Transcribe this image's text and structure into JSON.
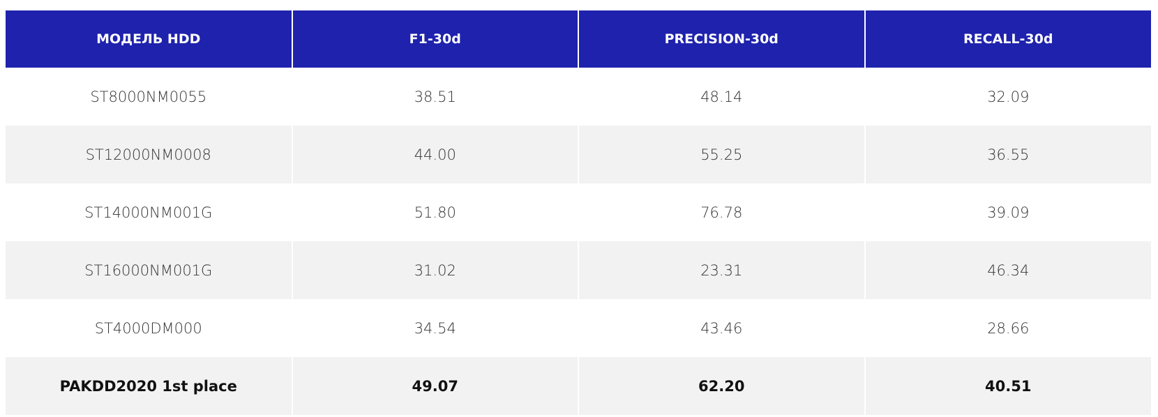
{
  "table": {
    "header": [
      "МОДЕЛЬ HDD",
      "F1-30d",
      "PRECISION-30d",
      "RECALL-30d"
    ],
    "rows": [
      [
        "ST8000NM0055",
        "38.51",
        "48.14",
        "32.09"
      ],
      [
        "ST12000NM0008",
        "44.00",
        "55.25",
        "36.55"
      ],
      [
        "ST14000NM001G",
        "51.80",
        "76.78",
        "39.09"
      ],
      [
        "ST16000NM001G",
        "31.02",
        "23.31",
        "46.34"
      ],
      [
        "ST4000DM000",
        "34.54",
        "43.46",
        "28.66"
      ],
      [
        "PAKDD2020 1st place",
        "49.07",
        "62.20",
        "40.51"
      ]
    ]
  }
}
